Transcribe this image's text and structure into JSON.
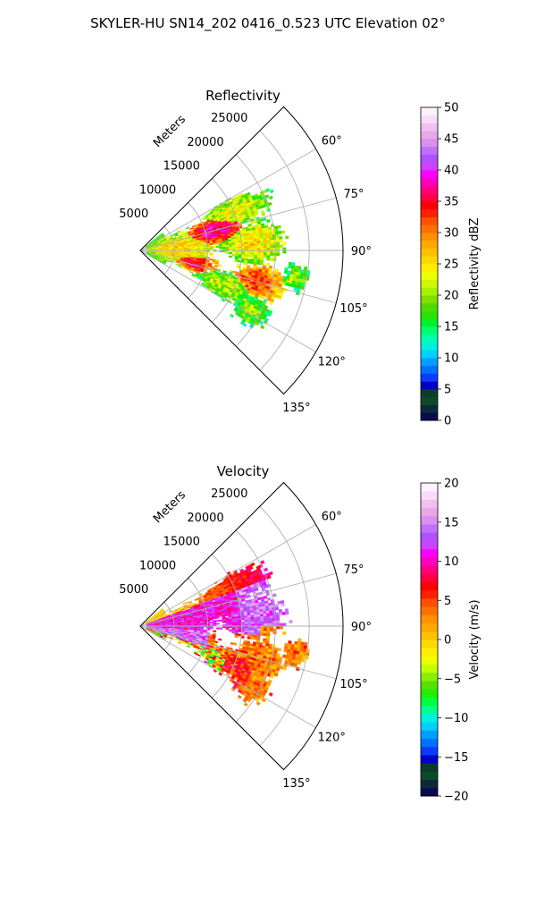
{
  "suptitle": "SKYLER-HU  SN14_202  0416_0.523 UTC Elevation 02°",
  "chart_data": [
    {
      "type": "heatmap",
      "title": "Reflectivity",
      "radial_label": "Meters",
      "radial_ticks": [
        5000,
        10000,
        15000,
        20000,
        25000
      ],
      "radial_tick_labels": [
        "5000",
        "10000",
        "15000",
        "20000",
        "25000"
      ],
      "rmax": 30000,
      "angular_range": [
        45,
        135
      ],
      "angular_ticks": [
        60,
        75,
        90,
        105,
        120,
        135
      ],
      "angular_tick_labels": [
        "60°",
        "75°",
        "90°",
        "105°",
        "120°",
        "135°"
      ],
      "grid": true,
      "colorbar": {
        "label": "Reflectivity dBZ",
        "range": [
          0,
          50
        ],
        "ticks": [
          0,
          5,
          10,
          15,
          20,
          25,
          30,
          35,
          40,
          45,
          50
        ],
        "tick_labels": [
          "0",
          "5",
          "10",
          "15",
          "20",
          "25",
          "30",
          "35",
          "40",
          "45",
          "50"
        ]
      }
    },
    {
      "type": "heatmap",
      "title": "Velocity",
      "radial_label": "Meters",
      "radial_ticks": [
        5000,
        10000,
        15000,
        20000,
        25000
      ],
      "radial_tick_labels": [
        "5000",
        "10000",
        "15000",
        "20000",
        "25000"
      ],
      "rmax": 30000,
      "angular_range": [
        45,
        135
      ],
      "angular_ticks": [
        60,
        75,
        90,
        105,
        120,
        135
      ],
      "angular_tick_labels": [
        "60°",
        "75°",
        "90°",
        "105°",
        "120°",
        "135°"
      ],
      "grid": true,
      "colorbar": {
        "label": "Velocity (m/s)",
        "range": [
          -20,
          20
        ],
        "ticks": [
          -20,
          -15,
          -10,
          -5,
          0,
          5,
          10,
          15,
          20
        ],
        "tick_labels": [
          "−20",
          "−15",
          "−10",
          "−5",
          "0",
          "5",
          "10",
          "15",
          "20"
        ]
      }
    }
  ]
}
